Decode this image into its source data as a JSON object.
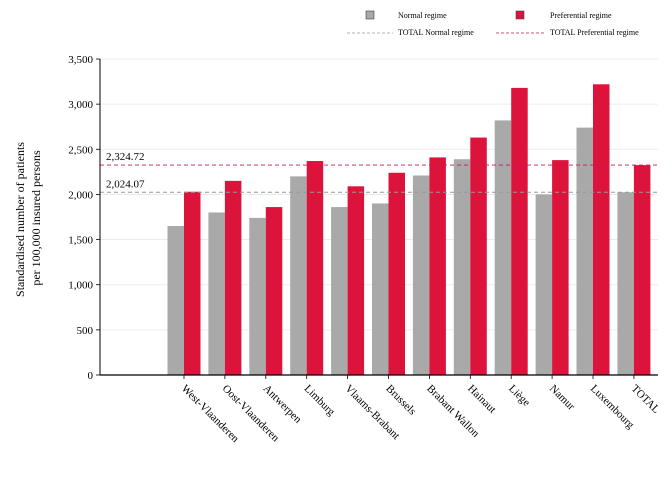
{
  "chart_data": {
    "type": "bar",
    "categories": [
      "West-Vlaanderen",
      "Oost-Vlaanderen",
      "Antwerpen",
      "Limburg",
      "Vlaams-Brabant",
      "Brussels",
      "Brabant Wallon",
      "Hainaut",
      "Liège",
      "Namur",
      "Luxembourg",
      "TOTAL"
    ],
    "series": [
      {
        "name": "Normal regime",
        "color": "#a9a9a9",
        "values": [
          1650,
          1800,
          1740,
          2200,
          1860,
          1900,
          2210,
          2390,
          2820,
          2000,
          2740,
          2024.07
        ]
      },
      {
        "name": "Preferential regime",
        "color": "#dc143c",
        "values": [
          2030,
          2150,
          1860,
          2370,
          2090,
          2240,
          2410,
          2630,
          3180,
          2380,
          3220,
          2324.72
        ]
      }
    ],
    "reference_lines": [
      {
        "name": "TOTAL Normal regime",
        "value": 2024.07,
        "label": "2,024.07",
        "color": "#999999"
      },
      {
        "name": "TOTAL Preferential regime",
        "value": 2324.72,
        "label": "2,324.72",
        "color": "#c2185b"
      }
    ],
    "ylabel_lines": [
      "Standardised number of patients",
      "per 100,000 insured persons"
    ],
    "xlabel": "",
    "ylim": [
      0,
      3500
    ],
    "yticks": [
      0,
      500,
      1000,
      1500,
      2000,
      2500,
      3000,
      3500
    ],
    "ytick_labels": [
      "0",
      "500",
      "1,000",
      "1,500",
      "2,000",
      "2,500",
      "3,000",
      "3,500"
    ],
    "grid": "horizontal",
    "legend_position": "top"
  }
}
